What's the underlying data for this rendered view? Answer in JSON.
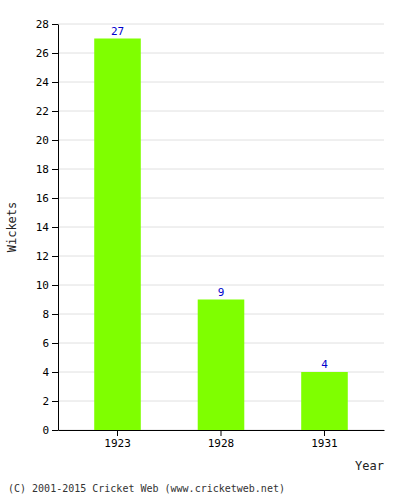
{
  "chart_data": {
    "type": "bar",
    "categories": [
      "1923",
      "1928",
      "1931"
    ],
    "values": [
      27,
      9,
      4
    ],
    "color": "#7FFF00",
    "xlabel": "Year",
    "ylabel": "Wickets",
    "ylim": [
      0,
      28
    ],
    "yticks": [
      0,
      2,
      4,
      6,
      8,
      10,
      12,
      14,
      16,
      18,
      20,
      22,
      24,
      26,
      28
    ],
    "grid": true,
    "data_labels": true,
    "annotations": [
      "(C) 2001-2015 Cricket Web (www.cricketweb.net)"
    ]
  }
}
